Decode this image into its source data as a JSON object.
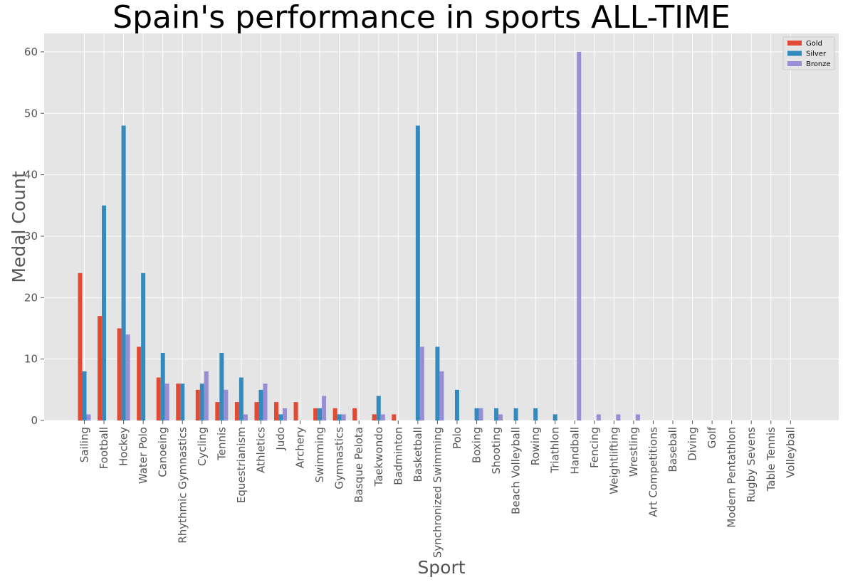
{
  "chart_data": {
    "type": "bar",
    "title": "Spain's performance in sports ALL-TIME",
    "xlabel": "Sport",
    "ylabel": "Medal Count",
    "ylim": [
      0,
      63
    ],
    "yticks": [
      0,
      10,
      20,
      30,
      40,
      50,
      60
    ],
    "grid": true,
    "legend_position": "top-right",
    "categories": [
      "Sailing",
      "Football",
      "Hockey",
      "Water Polo",
      "Canoeing",
      "Rhythmic Gymnastics",
      "Cycling",
      "Tennis",
      "Equestrianism",
      "Athletics",
      "Judo",
      "Archery",
      "Swimming",
      "Gymnastics",
      "Basque Pelota",
      "Taekwondo",
      "Badminton",
      "Basketball",
      "Synchronized Swimming",
      "Polo",
      "Boxing",
      "Shooting",
      "Beach Volleyball",
      "Rowing",
      "Triathlon",
      "Handball",
      "Fencing",
      "Weightlifting",
      "Wrestling",
      "Art Competitions",
      "Baseball",
      "Diving",
      "Golf",
      "Modern Pentathlon",
      "Rugby Sevens",
      "Table Tennis",
      "Volleyball"
    ],
    "series": [
      {
        "name": "Gold",
        "color": "#E24A33",
        "values": [
          24,
          17,
          15,
          12,
          7,
          6,
          5,
          3,
          3,
          3,
          3,
          3,
          2,
          2,
          2,
          1,
          1,
          0,
          0,
          0,
          0,
          0,
          0,
          0,
          0,
          0,
          0,
          0,
          0,
          0,
          0,
          0,
          0,
          0,
          0,
          0,
          0
        ]
      },
      {
        "name": "Silver",
        "color": "#348ABD",
        "values": [
          8,
          35,
          48,
          24,
          11,
          6,
          6,
          11,
          7,
          5,
          1,
          0,
          2,
          1,
          0,
          4,
          0,
          48,
          12,
          5,
          2,
          2,
          2,
          2,
          1,
          0,
          0,
          0,
          0,
          0,
          0,
          0,
          0,
          0,
          0,
          0,
          0
        ]
      },
      {
        "name": "Bronze",
        "color": "#988ED5",
        "values": [
          1,
          0,
          14,
          0,
          6,
          0,
          8,
          5,
          1,
          6,
          2,
          0,
          4,
          1,
          0,
          1,
          0,
          12,
          8,
          0,
          2,
          1,
          0,
          0,
          0,
          60,
          1,
          1,
          1,
          0,
          0,
          0,
          0,
          0,
          0,
          0,
          0
        ]
      }
    ]
  }
}
